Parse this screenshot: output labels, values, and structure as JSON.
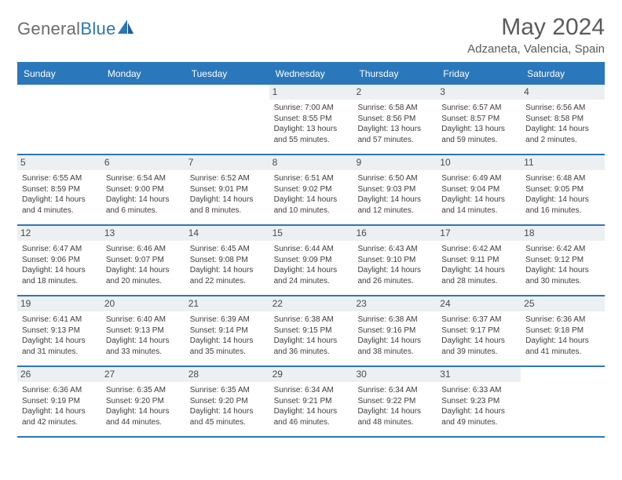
{
  "logo": {
    "text_general": "General",
    "text_blue": "Blue"
  },
  "title": "May 2024",
  "location": "Adzaneta, Valencia, Spain",
  "colors": {
    "header_bg": "#2a77bb",
    "header_text": "#ffffff",
    "daynum_bg": "#edf0f2",
    "body_text": "#3d3d3d",
    "title_text": "#5b5b5b",
    "logo_gray": "#6b6b6b",
    "logo_blue": "#2a77bb",
    "page_bg": "#ffffff"
  },
  "typography": {
    "title_fontsize": 30,
    "subtitle_fontsize": 15,
    "dayheader_fontsize": 12,
    "daynum_fontsize": 12,
    "info_fontsize": 10
  },
  "day_names": [
    "Sunday",
    "Monday",
    "Tuesday",
    "Wednesday",
    "Thursday",
    "Friday",
    "Saturday"
  ],
  "weeks": [
    [
      {
        "day": "",
        "sunrise": "",
        "sunset": "",
        "daylight": ""
      },
      {
        "day": "",
        "sunrise": "",
        "sunset": "",
        "daylight": ""
      },
      {
        "day": "",
        "sunrise": "",
        "sunset": "",
        "daylight": ""
      },
      {
        "day": "1",
        "sunrise": "Sunrise: 7:00 AM",
        "sunset": "Sunset: 8:55 PM",
        "daylight": "Daylight: 13 hours and 55 minutes."
      },
      {
        "day": "2",
        "sunrise": "Sunrise: 6:58 AM",
        "sunset": "Sunset: 8:56 PM",
        "daylight": "Daylight: 13 hours and 57 minutes."
      },
      {
        "day": "3",
        "sunrise": "Sunrise: 6:57 AM",
        "sunset": "Sunset: 8:57 PM",
        "daylight": "Daylight: 13 hours and 59 minutes."
      },
      {
        "day": "4",
        "sunrise": "Sunrise: 6:56 AM",
        "sunset": "Sunset: 8:58 PM",
        "daylight": "Daylight: 14 hours and 2 minutes."
      }
    ],
    [
      {
        "day": "5",
        "sunrise": "Sunrise: 6:55 AM",
        "sunset": "Sunset: 8:59 PM",
        "daylight": "Daylight: 14 hours and 4 minutes."
      },
      {
        "day": "6",
        "sunrise": "Sunrise: 6:54 AM",
        "sunset": "Sunset: 9:00 PM",
        "daylight": "Daylight: 14 hours and 6 minutes."
      },
      {
        "day": "7",
        "sunrise": "Sunrise: 6:52 AM",
        "sunset": "Sunset: 9:01 PM",
        "daylight": "Daylight: 14 hours and 8 minutes."
      },
      {
        "day": "8",
        "sunrise": "Sunrise: 6:51 AM",
        "sunset": "Sunset: 9:02 PM",
        "daylight": "Daylight: 14 hours and 10 minutes."
      },
      {
        "day": "9",
        "sunrise": "Sunrise: 6:50 AM",
        "sunset": "Sunset: 9:03 PM",
        "daylight": "Daylight: 14 hours and 12 minutes."
      },
      {
        "day": "10",
        "sunrise": "Sunrise: 6:49 AM",
        "sunset": "Sunset: 9:04 PM",
        "daylight": "Daylight: 14 hours and 14 minutes."
      },
      {
        "day": "11",
        "sunrise": "Sunrise: 6:48 AM",
        "sunset": "Sunset: 9:05 PM",
        "daylight": "Daylight: 14 hours and 16 minutes."
      }
    ],
    [
      {
        "day": "12",
        "sunrise": "Sunrise: 6:47 AM",
        "sunset": "Sunset: 9:06 PM",
        "daylight": "Daylight: 14 hours and 18 minutes."
      },
      {
        "day": "13",
        "sunrise": "Sunrise: 6:46 AM",
        "sunset": "Sunset: 9:07 PM",
        "daylight": "Daylight: 14 hours and 20 minutes."
      },
      {
        "day": "14",
        "sunrise": "Sunrise: 6:45 AM",
        "sunset": "Sunset: 9:08 PM",
        "daylight": "Daylight: 14 hours and 22 minutes."
      },
      {
        "day": "15",
        "sunrise": "Sunrise: 6:44 AM",
        "sunset": "Sunset: 9:09 PM",
        "daylight": "Daylight: 14 hours and 24 minutes."
      },
      {
        "day": "16",
        "sunrise": "Sunrise: 6:43 AM",
        "sunset": "Sunset: 9:10 PM",
        "daylight": "Daylight: 14 hours and 26 minutes."
      },
      {
        "day": "17",
        "sunrise": "Sunrise: 6:42 AM",
        "sunset": "Sunset: 9:11 PM",
        "daylight": "Daylight: 14 hours and 28 minutes."
      },
      {
        "day": "18",
        "sunrise": "Sunrise: 6:42 AM",
        "sunset": "Sunset: 9:12 PM",
        "daylight": "Daylight: 14 hours and 30 minutes."
      }
    ],
    [
      {
        "day": "19",
        "sunrise": "Sunrise: 6:41 AM",
        "sunset": "Sunset: 9:13 PM",
        "daylight": "Daylight: 14 hours and 31 minutes."
      },
      {
        "day": "20",
        "sunrise": "Sunrise: 6:40 AM",
        "sunset": "Sunset: 9:13 PM",
        "daylight": "Daylight: 14 hours and 33 minutes."
      },
      {
        "day": "21",
        "sunrise": "Sunrise: 6:39 AM",
        "sunset": "Sunset: 9:14 PM",
        "daylight": "Daylight: 14 hours and 35 minutes."
      },
      {
        "day": "22",
        "sunrise": "Sunrise: 6:38 AM",
        "sunset": "Sunset: 9:15 PM",
        "daylight": "Daylight: 14 hours and 36 minutes."
      },
      {
        "day": "23",
        "sunrise": "Sunrise: 6:38 AM",
        "sunset": "Sunset: 9:16 PM",
        "daylight": "Daylight: 14 hours and 38 minutes."
      },
      {
        "day": "24",
        "sunrise": "Sunrise: 6:37 AM",
        "sunset": "Sunset: 9:17 PM",
        "daylight": "Daylight: 14 hours and 39 minutes."
      },
      {
        "day": "25",
        "sunrise": "Sunrise: 6:36 AM",
        "sunset": "Sunset: 9:18 PM",
        "daylight": "Daylight: 14 hours and 41 minutes."
      }
    ],
    [
      {
        "day": "26",
        "sunrise": "Sunrise: 6:36 AM",
        "sunset": "Sunset: 9:19 PM",
        "daylight": "Daylight: 14 hours and 42 minutes."
      },
      {
        "day": "27",
        "sunrise": "Sunrise: 6:35 AM",
        "sunset": "Sunset: 9:20 PM",
        "daylight": "Daylight: 14 hours and 44 minutes."
      },
      {
        "day": "28",
        "sunrise": "Sunrise: 6:35 AM",
        "sunset": "Sunset: 9:20 PM",
        "daylight": "Daylight: 14 hours and 45 minutes."
      },
      {
        "day": "29",
        "sunrise": "Sunrise: 6:34 AM",
        "sunset": "Sunset: 9:21 PM",
        "daylight": "Daylight: 14 hours and 46 minutes."
      },
      {
        "day": "30",
        "sunrise": "Sunrise: 6:34 AM",
        "sunset": "Sunset: 9:22 PM",
        "daylight": "Daylight: 14 hours and 48 minutes."
      },
      {
        "day": "31",
        "sunrise": "Sunrise: 6:33 AM",
        "sunset": "Sunset: 9:23 PM",
        "daylight": "Daylight: 14 hours and 49 minutes."
      },
      {
        "day": "",
        "sunrise": "",
        "sunset": "",
        "daylight": ""
      }
    ]
  ]
}
